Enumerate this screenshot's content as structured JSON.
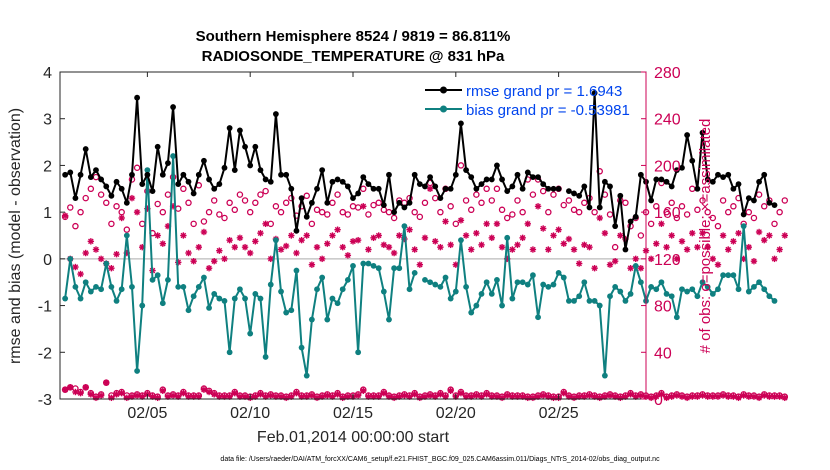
{
  "chart_data": {
    "type": "line",
    "title_line1": "Southern Hemisphere 8524 / 9819 = 86.811%",
    "title_line2": "RADIOSONDE_TEMPERATURE @ 831 hPa",
    "xlabel": "Feb.01,2014 00:00:00 start",
    "ylabel_left": "rmse and bias (model - observation)",
    "ylabel_right": "# of obs: o=possible; ×=assimilated",
    "footnote": "data file: /Users/raeder/DAI/ATM_forcXX/CAM6_setup/f.e21.FHIST_BGC.f09_025.CAM6assim.011/Diags_NTrS_2014-02/obs_diag_output.nc",
    "x_range_days": [
      0.75,
      29.25
    ],
    "x_tick_days": [
      5,
      10,
      15,
      20,
      25
    ],
    "x_tick_labels": [
      "02/05",
      "02/10",
      "02/15",
      "02/20",
      "02/25"
    ],
    "y_left_range": [
      -3,
      4
    ],
    "y_left_ticks": [
      "-3",
      "-2",
      "-1",
      "0",
      "1",
      "2",
      "3",
      "4"
    ],
    "y_right_range": [
      0,
      280
    ],
    "y_right_ticks": [
      "0",
      "40",
      "80",
      "120",
      "160",
      "200",
      "240",
      "280"
    ],
    "legend": {
      "rmse_label": "rmse grand pr = 1.6943",
      "bias_label": "bias grand pr = -0.53981"
    },
    "colors": {
      "rmse": "#000000",
      "bias": "#0f8080",
      "obs": "#cc0055",
      "zero_line": "#bbbbbb"
    },
    "series": [
      {
        "name": "rmse",
        "x_start_day": 1.0,
        "x_step_days": 0.25,
        "values": [
          1.8,
          1.85,
          1.3,
          1.8,
          2.35,
          1.75,
          1.9,
          1.7,
          1.55,
          1.35,
          1.65,
          1.5,
          1.2,
          1.8,
          3.45,
          1.6,
          1.8,
          1.45,
          2.4,
          1.8,
          2.05,
          3.25,
          1.6,
          1.8,
          1.65,
          1.4,
          1.8,
          2.1,
          1.7,
          1.5,
          1.6,
          1.95,
          2.8,
          1.9,
          2.75,
          2.4,
          2.0,
          2.4,
          1.9,
          1.7,
          1.65,
          3.1,
          1.8,
          1.8,
          1.5,
          0.6,
          1.3,
          0.9,
          1.2,
          1.5,
          1.9,
          1.2,
          1.65,
          1.7,
          1.65,
          1.55,
          1.3,
          1.4,
          1.75,
          1.6,
          1.5,
          1.5,
          1.15,
          1.8,
          1.0,
          1.2,
          1.1,
          1.2,
          1.8,
          1.6,
          1.55,
          1.75,
          1.55,
          1.3,
          1.5,
          1.5,
          1.8,
          2.9,
          1.9,
          1.75,
          1.5,
          1.6,
          1.7,
          1.7,
          2.0,
          1.7,
          1.45,
          1.55,
          1.8,
          1.5,
          1.85,
          1.75,
          1.75,
          1.6,
          1.5,
          1.5,
          1.5,
          null,
          1.45,
          1.4,
          1.35,
          1.55,
          1.1,
          3.55,
          1.1,
          1.65,
          1.55,
          0.7,
          1.35,
          0.2,
          0.8,
          0.9,
          1.8,
          1.65,
          1.25,
          1.7,
          1.7,
          1.65,
          1.55,
          1.9,
          1.95,
          2.65,
          2.1,
          1.5,
          2.7,
          1.7,
          1.65,
          1.8,
          1.75,
          1.8,
          1.5,
          1.6,
          0.95,
          1.3,
          1.25,
          1.65,
          1.8,
          1.2,
          1.15
        ]
      },
      {
        "name": "bias",
        "x_start_day": 1.0,
        "x_step_days": 0.25,
        "values": [
          -0.85,
          -0.0,
          -0.6,
          -0.85,
          -0.5,
          -0.7,
          -0.6,
          -0.65,
          -0.1,
          -0.6,
          -0.9,
          -0.65,
          0.5,
          -0.6,
          -2.4,
          -1.0,
          1.9,
          -0.45,
          -0.35,
          -0.95,
          -0.45,
          2.2,
          -0.6,
          -0.6,
          -1.1,
          -0.8,
          -0.6,
          -0.4,
          -1.05,
          -0.75,
          -0.85,
          -0.9,
          -2.0,
          -0.85,
          -0.65,
          -0.85,
          -1.6,
          -0.75,
          -0.85,
          -2.1,
          -0.55,
          0.4,
          -0.7,
          -1.15,
          -1.1,
          -0.25,
          -1.9,
          -2.5,
          -1.3,
          -0.65,
          -0.4,
          -1.3,
          -0.85,
          -0.95,
          -0.65,
          -0.45,
          -0.15,
          -2.0,
          -0.1,
          -0.1,
          -0.15,
          -0.2,
          -0.7,
          -1.3,
          -0.2,
          -0.2,
          0.7,
          -0.65,
          -0.3,
          null,
          -0.45,
          -0.5,
          -0.55,
          -0.6,
          -0.4,
          -0.85,
          -0.7,
          0.4,
          -0.6,
          -1.15,
          -1.0,
          -0.75,
          -0.5,
          -0.75,
          -0.45,
          -1.0,
          0.45,
          -0.85,
          -0.5,
          -0.5,
          -0.55,
          -0.35,
          -1.25,
          -0.55,
          -0.6,
          -0.55,
          -0.3,
          -0.4,
          -0.9,
          -0.9,
          -0.8,
          -0.5,
          -0.9,
          -0.9,
          -1.0,
          -2.5,
          -0.8,
          -0.6,
          -0.7,
          -0.9,
          -0.75,
          -0.15,
          -0.5,
          -0.9,
          -0.6,
          -0.65,
          -0.5,
          -0.75,
          -0.8,
          -1.25,
          -0.65,
          -0.7,
          -0.65,
          -0.8,
          -0.5,
          -0.6,
          -0.75,
          -0.65,
          -0.35,
          -0.35,
          -0.35,
          -0.65,
          0.7,
          -0.7,
          -0.6,
          -0.5,
          -0.65,
          -0.8,
          -0.9
        ]
      },
      {
        "name": "obs_possible",
        "x_start_day": 1.0,
        "x_step_days": 0.25,
        "values": [
          156,
          164,
          148,
          160,
          172,
          180,
          190,
          175,
          168,
          150,
          165,
          160,
          145,
          188,
          198,
          150,
          178,
          142,
          167,
          160,
          175,
          190,
          163,
          180,
          168,
          150,
          183,
          152,
          160,
          170,
          158,
          155,
          168,
          162,
          175,
          170,
          160,
          168,
          175,
          178,
          150,
          165,
          160,
          168,
          172,
          157,
          165,
          174,
          150,
          162,
          160,
          158,
          168,
          175,
          160,
          158,
          165,
          164,
          180,
          158,
          166,
          168,
          162,
          160,
          155,
          170,
          168,
          172,
          160,
          156,
          168,
          185,
          172,
          160,
          180,
          165,
          150,
          200,
          170,
          162,
          175,
          168,
          180,
          170,
          180,
          162,
          155,
          158,
          170,
          160,
          188,
          175,
          188,
          178,
          160,
          175,
          180,
          166,
          170,
          162,
          160,
          168,
          172,
          160,
          195,
          175,
          158,
          130,
          170,
          168,
          148,
          155,
          140,
          160,
          150,
          165,
          185,
          160,
          168,
          155,
          165,
          158,
          180,
          162,
          170,
          160,
          155,
          148,
          170,
          160,
          165,
          172,
          150,
          160,
          155,
          175,
          165,
          170,
          150,
          160,
          170
        ]
      },
      {
        "name": "obs_assimilated",
        "x_start_day": 1.0,
        "x_step_days": 0.25,
        "values": [
          157,
          120,
          113,
          107,
          125,
          135,
          128,
          120,
          116,
          112,
          124,
          155,
          125,
          172,
          160,
          130,
          163,
          110,
          140,
          133,
          148,
          165,
          117,
          140,
          125,
          118,
          130,
          143,
          112,
          118,
          127,
          120,
          136,
          130,
          138,
          130,
          125,
          135,
          142,
          150,
          120,
          137,
          128,
          131,
          140,
          125,
          136,
          140,
          115,
          130,
          120,
          133,
          140,
          145,
          130,
          123,
          135,
          136,
          165,
          128,
          138,
          140,
          132,
          130,
          125,
          140,
          137,
          145,
          128,
          115,
          138,
          180,
          135,
          130,
          152,
          132,
          115,
          153,
          140,
          128,
          142,
          132,
          150,
          138,
          150,
          130,
          120,
          128,
          132,
          138,
          150,
          128,
          165,
          146,
          128,
          140,
          145,
          133,
          137,
          128,
          116,
          132,
          130,
          112,
          155,
          142,
          115,
          118,
          140,
          137,
          112,
          120,
          112,
          127,
          120,
          133,
          150,
          130,
          140,
          120,
          135,
          128,
          142,
          130,
          142,
          130,
          120,
          115,
          140,
          128,
          135,
          142,
          120,
          130,
          118,
          143,
          136,
          140,
          120,
          128,
          140
        ]
      },
      {
        "name": "obs_bottom_possible",
        "x_start_day": 1.0,
        "x_step_days": 0.25,
        "values": [
          8,
          10,
          9,
          6,
          10,
          5,
          2,
          4,
          14,
          3,
          5,
          6,
          3,
          3,
          4,
          3,
          5,
          3,
          2,
          8,
          3,
          4,
          3,
          6,
          3,
          3,
          3,
          9,
          7,
          5,
          3,
          3,
          3,
          6,
          3,
          3,
          2,
          3,
          5,
          3,
          4,
          3,
          3,
          2,
          3,
          6,
          3,
          3,
          4,
          2,
          3,
          4,
          3,
          5,
          2,
          3,
          3,
          4,
          8,
          3,
          3,
          3,
          6,
          3,
          2,
          3,
          4,
          3,
          5,
          2,
          3,
          4,
          3,
          5,
          3,
          8,
          3,
          6,
          3,
          3,
          4,
          3,
          5,
          3,
          3,
          2,
          4,
          3,
          3,
          3,
          2,
          2,
          3,
          4,
          3,
          2,
          2,
          6,
          3,
          2,
          3,
          3,
          4,
          3,
          2,
          3,
          4,
          3,
          2,
          3,
          5,
          3,
          4,
          3,
          2,
          3,
          5,
          2,
          3,
          4,
          3,
          2,
          3,
          3,
          4,
          3,
          3,
          3,
          4,
          3,
          3,
          2,
          4,
          3,
          3,
          2,
          4,
          3,
          3,
          3,
          2
        ]
      },
      {
        "name": "obs_bottom_assimilated",
        "x_start_day": 1.0,
        "x_step_days": 0.25,
        "values": [
          8,
          10,
          6,
          5,
          10,
          4,
          1,
          3,
          14,
          1,
          4,
          5,
          1,
          2,
          3,
          2,
          4,
          2,
          1,
          7,
          2,
          3,
          2,
          5,
          2,
          2,
          2,
          8,
          6,
          4,
          2,
          2,
          2,
          5,
          2,
          2,
          1,
          2,
          4,
          2,
          3,
          2,
          2,
          1,
          2,
          5,
          2,
          2,
          3,
          1,
          2,
          3,
          2,
          4,
          1,
          2,
          2,
          3,
          7,
          2,
          2,
          2,
          5,
          2,
          1,
          2,
          3,
          2,
          4,
          1,
          2,
          3,
          2,
          4,
          2,
          7,
          2,
          5,
          2,
          2,
          3,
          2,
          4,
          2,
          2,
          1,
          3,
          2,
          2,
          2,
          1,
          1,
          2,
          3,
          2,
          1,
          1,
          5,
          2,
          1,
          2,
          2,
          3,
          2,
          1,
          2,
          3,
          2,
          1,
          2,
          4,
          2,
          3,
          2,
          1,
          2,
          4,
          1,
          2,
          3,
          2,
          1,
          2,
          2,
          3,
          2,
          2,
          2,
          3,
          2,
          2,
          1,
          3,
          2,
          2,
          1,
          3,
          2,
          2,
          2,
          1
        ]
      }
    ]
  }
}
